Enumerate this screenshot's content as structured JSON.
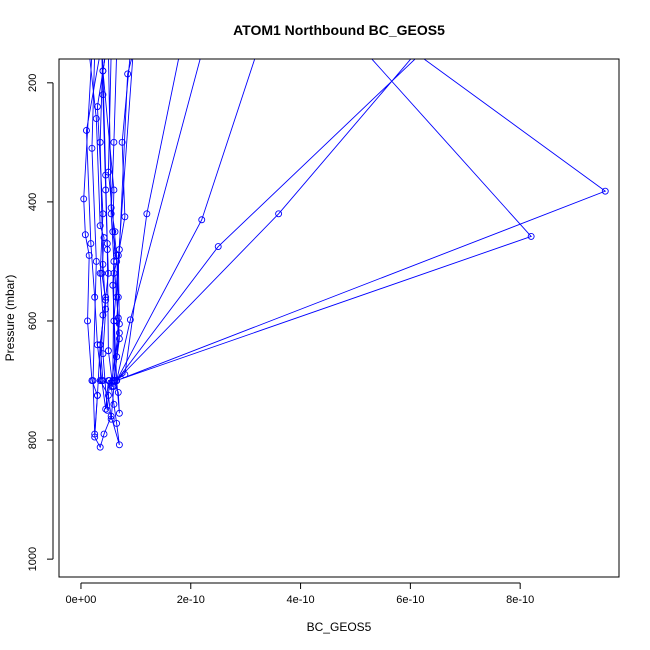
{
  "chart_data": {
    "type": "line",
    "title": "ATOM1 Northbound BC_GEOS5",
    "xlabel": "BC_GEOS5",
    "ylabel": "Pressure (mbar)",
    "xlim": [
      -4e-11,
      9.8e-10
    ],
    "ylim": [
      1030,
      160
    ],
    "y_reversed": true,
    "grid": false,
    "marker": "open-circle",
    "series_color": "#0000ff",
    "x_ticks": [
      {
        "value": 0,
        "label": "0e+00"
      },
      {
        "value": 2e-10,
        "label": "2e-10"
      },
      {
        "value": 4e-10,
        "label": "4e-10"
      },
      {
        "value": 6e-10,
        "label": "6e-10"
      },
      {
        "value": 8e-10,
        "label": "8e-10"
      }
    ],
    "y_ticks": [
      {
        "value": 200,
        "label": "200"
      },
      {
        "value": 400,
        "label": "400"
      },
      {
        "value": 600,
        "label": "600"
      },
      {
        "value": 800,
        "label": "800"
      },
      {
        "value": 1000,
        "label": "1000"
      }
    ],
    "series": [
      {
        "points": [
          [
            2e-11,
            150
          ],
          [
            5e-12,
            395
          ],
          [
            8e-12,
            455
          ],
          [
            1.5e-11,
            490
          ],
          [
            1.2e-11,
            600
          ],
          [
            2e-11,
            700
          ],
          [
            3e-11,
            725
          ],
          [
            2.5e-11,
            795
          ],
          [
            3.5e-11,
            812
          ],
          [
            4.2e-11,
            790
          ],
          [
            5.5e-11,
            760
          ],
          [
            7e-11,
            808
          ],
          [
            6.5e-11,
            772
          ],
          [
            6e-11,
            740
          ],
          [
            5.5e-11,
            710
          ],
          [
            7e-11,
            605
          ],
          [
            6.8e-11,
            490
          ],
          [
            8e-11,
            425
          ],
          [
            7.5e-11,
            300
          ],
          [
            9e-11,
            150
          ]
        ]
      },
      {
        "points": [
          [
            3.5e-11,
            150
          ],
          [
            1e-11,
            280
          ],
          [
            1.8e-11,
            470
          ],
          [
            2.5e-11,
            560
          ],
          [
            3e-11,
            640
          ],
          [
            3.8e-11,
            700
          ],
          [
            4.5e-11,
            748
          ],
          [
            5e-11,
            700
          ],
          [
            6e-11,
            700
          ],
          [
            7e-11,
            630
          ],
          [
            6.5e-11,
            560
          ],
          [
            7e-11,
            480
          ],
          [
            8.5e-11,
            185
          ],
          [
            9.5e-11,
            150
          ]
        ]
      },
      {
        "points": [
          [
            4.5e-11,
            150
          ],
          [
            3e-11,
            240
          ],
          [
            4e-11,
            420
          ],
          [
            3.5e-11,
            520
          ],
          [
            4e-11,
            590
          ],
          [
            3.5e-11,
            700
          ],
          [
            5e-11,
            725
          ],
          [
            5.5e-11,
            765
          ],
          [
            6e-11,
            710
          ],
          [
            6.5e-11,
            660
          ],
          [
            6.8e-11,
            595
          ],
          [
            6e-11,
            500
          ],
          [
            5.5e-11,
            420
          ],
          [
            6e-11,
            300
          ],
          [
            6.5e-11,
            150
          ]
        ]
      },
      {
        "points": [
          [
            1.5e-11,
            150
          ],
          [
            2.8e-11,
            260
          ],
          [
            3.5e-11,
            440
          ],
          [
            4.2e-11,
            460
          ],
          [
            3.8e-11,
            520
          ],
          [
            4.5e-11,
            565
          ],
          [
            3.5e-11,
            640
          ],
          [
            4e-11,
            700
          ],
          [
            5.8e-11,
            710
          ],
          [
            5e-11,
            650
          ],
          [
            4.8e-11,
            480
          ],
          [
            4.5e-11,
            380
          ],
          [
            4e-11,
            220
          ],
          [
            3.8e-11,
            150
          ]
        ]
      },
      {
        "points": [
          [
            2.5e-11,
            150
          ],
          [
            2e-11,
            310
          ],
          [
            2.8e-11,
            500
          ],
          [
            2.2e-11,
            700
          ],
          [
            2.5e-11,
            790
          ],
          [
            3e-11,
            725
          ],
          [
            3.5e-11,
            640
          ],
          [
            4.5e-11,
            560
          ],
          [
            5e-11,
            520
          ],
          [
            4.8e-11,
            470
          ],
          [
            4.5e-11,
            355
          ],
          [
            4e-11,
            180
          ],
          [
            4.5e-11,
            150
          ]
        ]
      },
      {
        "points": [
          [
            5e-11,
            150
          ],
          [
            5.5e-11,
            410
          ],
          [
            6.2e-11,
            450
          ],
          [
            5.8e-11,
            540
          ],
          [
            6.5e-11,
            700
          ],
          [
            7e-11,
            755
          ],
          [
            6.8e-11,
            720
          ],
          [
            6e-11,
            700
          ],
          [
            7e-11,
            620
          ],
          [
            6.5e-11,
            600
          ],
          [
            6.8e-11,
            560
          ],
          [
            6.5e-11,
            490
          ],
          [
            5e-11,
            350
          ],
          [
            5.5e-11,
            150
          ]
        ]
      },
      {
        "points": [
          [
            4e-11,
            150
          ],
          [
            3.5e-11,
            300
          ],
          [
            4e-11,
            505
          ],
          [
            4.5e-11,
            580
          ],
          [
            4e-11,
            655
          ],
          [
            4.8e-11,
            750
          ],
          [
            5.2e-11,
            700
          ],
          [
            5.8e-11,
            700
          ],
          [
            6e-11,
            520
          ],
          [
            6.5e-11,
            500
          ],
          [
            5.8e-11,
            450
          ],
          [
            6e-11,
            380
          ],
          [
            4e-11,
            180
          ],
          [
            4.5e-11,
            150
          ]
        ]
      },
      {
        "points": [
          [
            9.5e-11,
            150
          ],
          [
            6e-11,
            600
          ],
          [
            6.2e-11,
            700
          ],
          [
            8e-11,
            690
          ],
          [
            1.2e-10,
            420
          ],
          [
            1.8e-10,
            150
          ]
        ]
      },
      {
        "points": [
          [
            2.2e-10,
            150
          ],
          [
            9e-11,
            598
          ],
          [
            6.5e-11,
            700
          ],
          [
            2.2e-10,
            430
          ],
          [
            3.2e-10,
            150
          ]
        ]
      },
      {
        "points": [
          [
            6.2e-10,
            150
          ],
          [
            2.5e-10,
            475
          ],
          [
            6.5e-11,
            700
          ],
          [
            3.6e-10,
            420
          ],
          [
            6.1e-10,
            150
          ]
        ]
      },
      {
        "points": [
          [
            5.2e-10,
            150
          ],
          [
            8.2e-10,
            458
          ],
          [
            6.5e-11,
            700
          ],
          [
            9.55e-10,
            382
          ],
          [
            6.1e-10,
            150
          ]
        ]
      }
    ]
  }
}
